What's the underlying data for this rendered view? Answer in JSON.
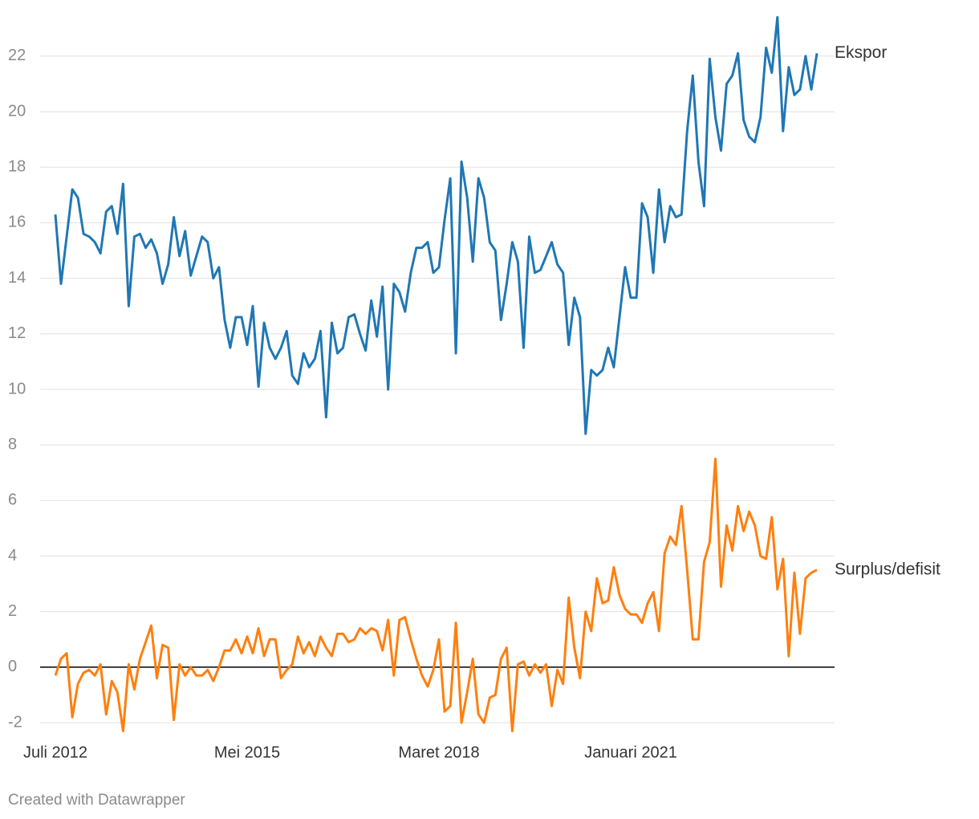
{
  "chart_data": {
    "type": "line",
    "categories": [
      "Juli 2012",
      null,
      null,
      null,
      null,
      null,
      null,
      null,
      null,
      null,
      null,
      null,
      null,
      null,
      null,
      null,
      null,
      null,
      null,
      null,
      null,
      null,
      null,
      null,
      null,
      null,
      null,
      null,
      null,
      null,
      null,
      null,
      null,
      null,
      "Mei 2015",
      null,
      null,
      null,
      null,
      null,
      null,
      null,
      null,
      null,
      null,
      null,
      null,
      null,
      null,
      null,
      null,
      null,
      null,
      null,
      null,
      null,
      null,
      null,
      null,
      null,
      null,
      null,
      null,
      null,
      null,
      null,
      null,
      null,
      "Maret 2018",
      null,
      null,
      null,
      null,
      null,
      null,
      null,
      null,
      null,
      null,
      null,
      null,
      null,
      null,
      null,
      null,
      null,
      null,
      null,
      null,
      null,
      null,
      null,
      null,
      null,
      null,
      null,
      null,
      null,
      null,
      null,
      null,
      null,
      "Januari 2021",
      null,
      null,
      null,
      null,
      null,
      null,
      null,
      null,
      null,
      null,
      null,
      null,
      null,
      null,
      null,
      null,
      null,
      null,
      null,
      null,
      null,
      null,
      null,
      null,
      null,
      null,
      null,
      null,
      null,
      null,
      null,
      null,
      null
    ],
    "series": [
      {
        "name": "Ekspor",
        "color": "#1f77b4",
        "values": [
          16.3,
          13.8,
          15.5,
          17.2,
          16.9,
          15.6,
          15.5,
          15.3,
          14.9,
          16.4,
          16.6,
          15.6,
          17.4,
          13.0,
          15.5,
          15.6,
          15.1,
          15.4,
          14.9,
          13.8,
          14.5,
          16.2,
          14.8,
          15.7,
          14.1,
          14.8,
          15.5,
          15.3,
          14.0,
          14.4,
          12.5,
          11.5,
          12.6,
          12.6,
          11.6,
          13.0,
          10.1,
          12.4,
          11.5,
          11.1,
          11.5,
          12.1,
          10.5,
          10.2,
          11.3,
          10.8,
          11.1,
          12.1,
          9.0,
          12.4,
          11.3,
          11.5,
          12.6,
          12.7,
          12.0,
          11.4,
          13.2,
          11.9,
          13.7,
          10.0,
          13.8,
          13.5,
          12.8,
          14.2,
          15.1,
          15.1,
          15.3,
          14.2,
          14.4,
          16.1,
          17.6,
          11.3,
          18.2,
          16.9,
          14.6,
          17.6,
          16.9,
          15.3,
          15.0,
          12.5,
          13.8,
          15.3,
          14.6,
          11.5,
          15.5,
          14.2,
          14.3,
          14.8,
          15.3,
          14.5,
          14.2,
          11.6,
          13.3,
          12.6,
          8.4,
          10.7,
          10.5,
          10.7,
          11.5,
          10.8,
          12.6,
          14.4,
          13.3,
          13.3,
          16.7,
          16.2,
          14.2,
          17.2,
          15.3,
          16.6,
          16.2,
          16.3,
          19.3,
          21.3,
          18.2,
          16.6,
          21.9,
          19.8,
          18.6,
          21.0,
          21.3,
          22.1,
          19.7,
          19.1,
          18.9,
          19.8,
          22.3,
          21.4,
          23.4,
          19.3,
          21.6,
          20.6,
          20.8,
          22.0,
          20.8,
          22.1
        ]
      },
      {
        "name": "Surplus/defisit",
        "color": "#ff7f0e",
        "values": [
          -0.3,
          0.3,
          0.5,
          -1.8,
          -0.6,
          -0.2,
          -0.1,
          -0.3,
          0.1,
          -1.7,
          -0.5,
          -0.9,
          -2.3,
          0.1,
          -0.8,
          0.3,
          0.9,
          1.5,
          -0.4,
          0.8,
          0.7,
          -1.9,
          0.1,
          -0.3,
          0.0,
          -0.3,
          -0.3,
          -0.1,
          -0.5,
          0.0,
          0.6,
          0.6,
          1.0,
          0.5,
          1.1,
          0.5,
          1.4,
          0.4,
          1.0,
          1.0,
          -0.4,
          -0.1,
          0.1,
          1.1,
          0.5,
          0.9,
          0.4,
          1.1,
          0.7,
          0.4,
          1.2,
          1.2,
          0.9,
          1.0,
          1.4,
          1.2,
          1.4,
          1.3,
          0.6,
          1.7,
          -0.3,
          1.7,
          1.8,
          1.0,
          0.3,
          -0.3,
          -0.7,
          -0.1,
          1.0,
          -1.6,
          -1.4,
          1.6,
          -2.0,
          -0.9,
          0.3,
          -1.7,
          -2.0,
          -1.1,
          -1.0,
          0.3,
          0.7,
          -2.3,
          0.1,
          0.2,
          -0.3,
          0.1,
          -0.2,
          0.1,
          -1.4,
          -0.1,
          -0.6,
          2.5,
          0.7,
          -0.4,
          2.0,
          1.3,
          3.2,
          2.3,
          2.4,
          3.6,
          2.6,
          2.1,
          1.9,
          1.9,
          1.6,
          2.3,
          2.7,
          1.3,
          4.1,
          4.7,
          4.4,
          5.8,
          3.5,
          1.0,
          1.0,
          3.8,
          4.5,
          7.5,
          2.9,
          5.1,
          4.2,
          5.8,
          4.9,
          5.6,
          5.1,
          4.0,
          3.9,
          5.4,
          2.8,
          3.9,
          0.4,
          3.4,
          1.2,
          3.2,
          3.4,
          3.5
        ]
      }
    ],
    "ylim": [
      -2.2,
      23.5
    ],
    "yticks": [
      -2,
      0,
      2,
      4,
      6,
      8,
      10,
      12,
      14,
      16,
      18,
      20,
      22
    ],
    "grid": true,
    "credit": "Created with Datawrapper"
  }
}
